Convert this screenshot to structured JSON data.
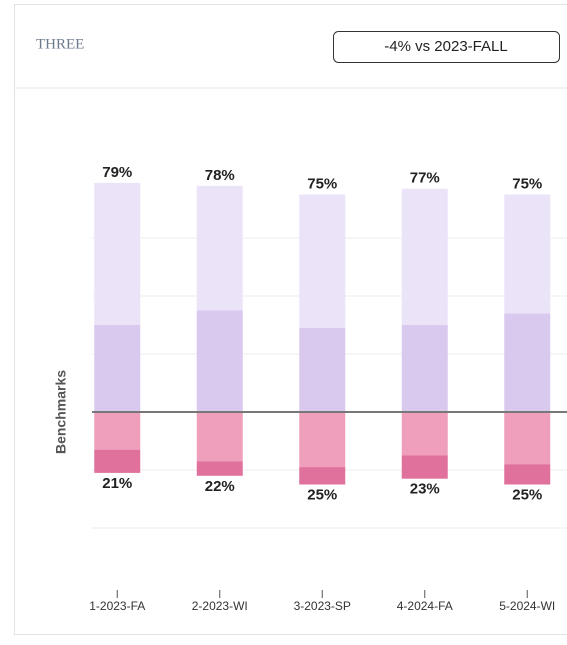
{
  "header": {
    "title": "THREE",
    "badge": "-4% vs 2023-FALL"
  },
  "chart_data": {
    "type": "diverging_bar",
    "y_label": "Benchmarks",
    "categories": [
      "1-2023-FA",
      "2-2023-WI",
      "3-2023-SP",
      "4-2024-FA",
      "5-2024-WI"
    ],
    "above": [
      {
        "color": "#d9c9ef",
        "values": [
          30,
          35,
          29,
          30,
          34
        ]
      },
      {
        "color": "#ebe3f8",
        "values": [
          49,
          43,
          46,
          47,
          41
        ]
      }
    ],
    "below": [
      {
        "color": "#ef9fbb",
        "values": [
          13,
          17,
          19,
          15,
          18
        ]
      },
      {
        "color": "#e0709c",
        "values": [
          8,
          5,
          6,
          8,
          7
        ]
      }
    ],
    "above_totals": {
      "values": [
        79,
        78,
        75,
        77,
        75
      ],
      "value_labels": [
        "79%",
        "78%",
        "75%",
        "77%",
        "75%"
      ]
    },
    "below_totals": {
      "values": [
        21,
        22,
        25,
        23,
        25
      ],
      "value_labels": [
        "21%",
        "22%",
        "25%",
        "23%",
        "25%"
      ]
    },
    "ylim": [
      -40,
      80
    ],
    "gridlines": [
      -40,
      -20,
      20,
      40,
      60
    ],
    "baseline": 0
  }
}
